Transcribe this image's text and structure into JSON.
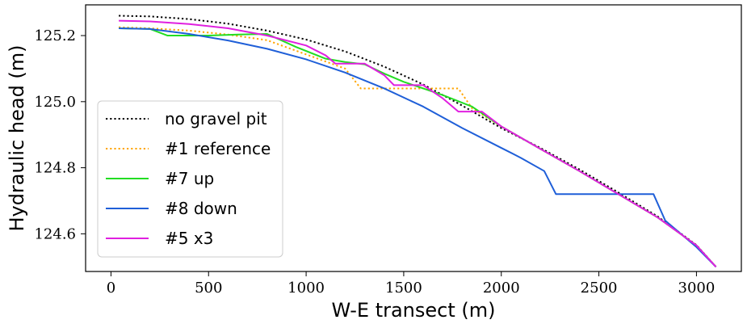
{
  "chart_data": {
    "type": "line",
    "title": "",
    "xlabel": "W-E transect (m)",
    "ylabel": "Hydraulic head (m)",
    "xlim": [
      -130,
      3230
    ],
    "ylim": [
      124.486,
      125.293
    ],
    "xticks": [
      0,
      500,
      1000,
      1500,
      2000,
      2500,
      3000
    ],
    "xtick_labels": [
      "0",
      "500",
      "1000",
      "1500",
      "2000",
      "2500",
      "3000"
    ],
    "yticks": [
      124.6,
      124.8,
      125.0,
      125.2
    ],
    "ytick_labels": [
      "124.6",
      "124.8",
      "125.0",
      "125.2"
    ],
    "grid": false,
    "legend_position": "bottom-left",
    "series": [
      {
        "name": "no gravel pit",
        "color": "#000000",
        "style": "dotted",
        "points": [
          [
            40,
            125.26
          ],
          [
            200,
            125.258
          ],
          [
            400,
            125.25
          ],
          [
            600,
            125.236
          ],
          [
            800,
            125.215
          ],
          [
            1000,
            125.188
          ],
          [
            1200,
            125.152
          ],
          [
            1400,
            125.106
          ],
          [
            1600,
            125.052
          ],
          [
            1800,
            124.988
          ],
          [
            2000,
            124.92
          ],
          [
            2200,
            124.86
          ],
          [
            2400,
            124.795
          ],
          [
            2600,
            124.725
          ],
          [
            2800,
            124.653
          ],
          [
            3000,
            124.566
          ],
          [
            3100,
            124.5
          ]
        ]
      },
      {
        "name": "#1 reference",
        "color": "#FFA500",
        "style": "dotted",
        "points": [
          [
            40,
            125.225
          ],
          [
            200,
            125.222
          ],
          [
            400,
            125.215
          ],
          [
            600,
            125.203
          ],
          [
            800,
            125.186
          ],
          [
            1000,
            125.143
          ],
          [
            1200,
            125.1
          ],
          [
            1280,
            125.04
          ],
          [
            1500,
            125.04
          ],
          [
            1650,
            125.04
          ],
          [
            1780,
            125.04
          ],
          [
            1850,
            124.98
          ],
          [
            2000,
            124.925
          ],
          [
            2200,
            124.857
          ],
          [
            2400,
            124.79
          ],
          [
            2600,
            124.72
          ],
          [
            2800,
            124.65
          ],
          [
            3000,
            124.565
          ],
          [
            3100,
            124.5
          ]
        ]
      },
      {
        "name": "#7 up",
        "color": "#22DD22",
        "style": "solid",
        "points": [
          [
            40,
            125.222
          ],
          [
            200,
            125.22
          ],
          [
            290,
            125.2
          ],
          [
            500,
            125.2
          ],
          [
            650,
            125.203
          ],
          [
            800,
            125.205
          ],
          [
            950,
            125.165
          ],
          [
            1100,
            125.13
          ],
          [
            1200,
            125.12
          ],
          [
            1300,
            125.113
          ],
          [
            1400,
            125.085
          ],
          [
            1500,
            125.06
          ],
          [
            1600,
            125.04
          ],
          [
            1700,
            125.02
          ],
          [
            1850,
            124.985
          ],
          [
            2000,
            124.925
          ],
          [
            2200,
            124.857
          ],
          [
            2400,
            124.79
          ],
          [
            2600,
            124.72
          ],
          [
            2800,
            124.65
          ],
          [
            3000,
            124.565
          ],
          [
            3100,
            124.5
          ]
        ]
      },
      {
        "name": "#8 down",
        "color": "#1F5FD8",
        "style": "solid",
        "points": [
          [
            40,
            125.222
          ],
          [
            200,
            125.22
          ],
          [
            400,
            125.205
          ],
          [
            600,
            125.185
          ],
          [
            800,
            125.16
          ],
          [
            1000,
            125.128
          ],
          [
            1200,
            125.088
          ],
          [
            1400,
            125.04
          ],
          [
            1600,
            124.985
          ],
          [
            1800,
            124.92
          ],
          [
            2000,
            124.86
          ],
          [
            2100,
            124.83
          ],
          [
            2220,
            124.79
          ],
          [
            2280,
            124.72
          ],
          [
            2500,
            124.72
          ],
          [
            2780,
            124.72
          ],
          [
            2840,
            124.64
          ],
          [
            3000,
            124.56
          ],
          [
            3100,
            124.5
          ]
        ]
      },
      {
        "name": "#5 x3",
        "color": "#E020E0",
        "style": "solid",
        "points": [
          [
            40,
            125.245
          ],
          [
            200,
            125.243
          ],
          [
            400,
            125.235
          ],
          [
            600,
            125.222
          ],
          [
            800,
            125.2
          ],
          [
            1000,
            125.17
          ],
          [
            1100,
            125.14
          ],
          [
            1150,
            125.115
          ],
          [
            1300,
            125.115
          ],
          [
            1400,
            125.08
          ],
          [
            1450,
            125.05
          ],
          [
            1600,
            125.05
          ],
          [
            1700,
            125.01
          ],
          [
            1780,
            124.97
          ],
          [
            1900,
            124.97
          ],
          [
            2000,
            124.925
          ],
          [
            2200,
            124.857
          ],
          [
            2400,
            124.79
          ],
          [
            2600,
            124.72
          ],
          [
            2800,
            124.65
          ],
          [
            3000,
            124.565
          ],
          [
            3100,
            124.5
          ]
        ]
      }
    ]
  }
}
